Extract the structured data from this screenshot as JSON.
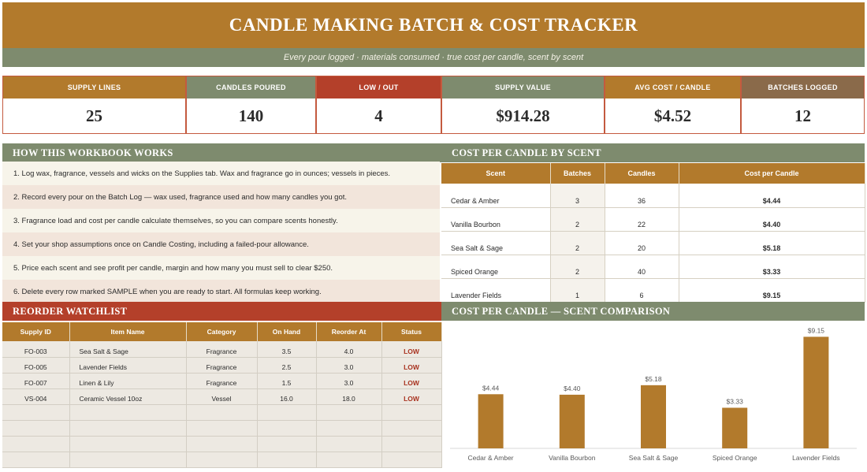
{
  "header": {
    "title": "CANDLE MAKING BATCH & COST TRACKER",
    "subtitle": "Every pour logged · materials consumed · true cost per candle, scent by scent"
  },
  "kpis": [
    {
      "label": "SUPPLY LINES",
      "value": "25",
      "color": "#b27a2c"
    },
    {
      "label": "CANDLES POURED",
      "value": "140",
      "color": "#7e8b6e"
    },
    {
      "label": "LOW / OUT",
      "value": "4",
      "color": "#b4402a"
    },
    {
      "label": "SUPPLY VALUE",
      "value": "$914.28",
      "color": "#7e8b6e"
    },
    {
      "label": "AVG COST / CANDLE",
      "value": "$4.52",
      "color": "#b27a2c"
    },
    {
      "label": "BATCHES LOGGED",
      "value": "12",
      "color": "#8a6a4a"
    }
  ],
  "how_it_works": {
    "title": "HOW THIS WORKBOOK WORKS",
    "steps": [
      "1.  Log wax, fragrance, vessels and wicks on the Supplies tab. Wax and fragrance go in ounces; vessels in pieces.",
      "2.  Record every pour on the Batch Log — wax used, fragrance used and how many candles you got.",
      "3.  Fragrance load and cost per candle calculate themselves, so you can compare scents honestly.",
      "4.  Set your shop assumptions once on Candle Costing, including a failed-pour allowance.",
      "5.  Price each scent and see profit per candle, margin and how many you must sell to clear $250.",
      "6.  Delete every row marked SAMPLE when you are ready to start. All formulas keep working."
    ]
  },
  "cost_by_scent": {
    "title": "COST PER CANDLE BY SCENT",
    "columns": [
      "Scent",
      "Batches",
      "Candles",
      "Cost per Candle"
    ],
    "rows": [
      [
        "Cedar & Amber",
        "3",
        "36",
        "$4.44"
      ],
      [
        "Vanilla Bourbon",
        "2",
        "22",
        "$4.40"
      ],
      [
        "Sea Salt & Sage",
        "2",
        "20",
        "$5.18"
      ],
      [
        "Spiced Orange",
        "2",
        "40",
        "$3.33"
      ],
      [
        "Lavender Fields",
        "1",
        "6",
        "$9.15"
      ]
    ]
  },
  "reorder": {
    "title": "REORDER WATCHLIST",
    "columns": [
      "Supply ID",
      "Item Name",
      "Category",
      "On Hand",
      "Reorder At",
      "Status"
    ],
    "rows": [
      [
        "FO-003",
        "Sea Salt & Sage",
        "Fragrance",
        "3.5",
        "4.0",
        "LOW"
      ],
      [
        "FO-005",
        "Lavender Fields",
        "Fragrance",
        "2.5",
        "3.0",
        "LOW"
      ],
      [
        "FO-007",
        "Linen & Lily",
        "Fragrance",
        "1.5",
        "3.0",
        "LOW"
      ],
      [
        "VS-004",
        "Ceramic Vessel 10oz",
        "Vessel",
        "16.0",
        "18.0",
        "LOW"
      ],
      [
        "",
        "",
        "",
        "",
        "",
        ""
      ],
      [
        "",
        "",
        "",
        "",
        "",
        ""
      ],
      [
        "",
        "",
        "",
        "",
        "",
        ""
      ],
      [
        "",
        "",
        "",
        "",
        "",
        ""
      ]
    ]
  },
  "chart_section_title": "COST PER CANDLE — SCENT COMPARISON",
  "chart_data": {
    "type": "bar",
    "categories": [
      "Cedar & Amber",
      "Vanilla Bourbon",
      "Sea Salt & Sage",
      "Spiced Orange",
      "Lavender Fields"
    ],
    "values": [
      4.44,
      4.4,
      5.18,
      3.33,
      9.15
    ],
    "data_labels": [
      "$4.44",
      "$4.40",
      "$5.18",
      "$3.33",
      "$9.15"
    ],
    "title": "",
    "xlabel": "",
    "ylabel": "",
    "ylim": [
      0,
      9.5
    ],
    "grid": false,
    "legend": "none",
    "bar_color": "#b27a2c"
  },
  "colors": {
    "brand": "#b27a2c",
    "sage": "#7e8b6e",
    "alert": "#b4402a",
    "brown": "#8a6a4a"
  }
}
